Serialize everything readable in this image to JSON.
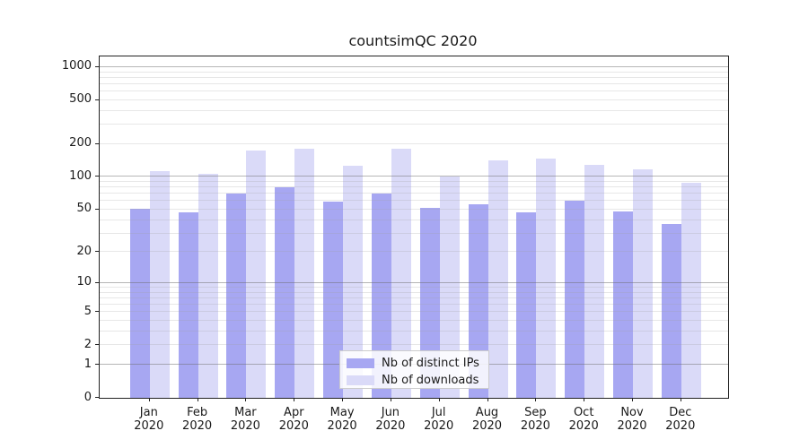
{
  "title": "countsimQC 2020",
  "chart_data": {
    "type": "bar",
    "title": "countsimQC 2020",
    "x_months": [
      "Jan",
      "Feb",
      "Mar",
      "Apr",
      "May",
      "Jun",
      "Jul",
      "Aug",
      "Sep",
      "Oct",
      "Nov",
      "Dec"
    ],
    "x_year": "2020",
    "categories": [
      "Jan 2020",
      "Feb 2020",
      "Mar 2020",
      "Apr 2020",
      "May 2020",
      "Jun 2020",
      "Jul 2020",
      "Aug 2020",
      "Sep 2020",
      "Oct 2020",
      "Nov 2020",
      "Dec 2020"
    ],
    "series": [
      {
        "name": "Nb of distinct IPs",
        "color": "#a7a7f2",
        "values": [
          51,
          47,
          71,
          81,
          59,
          71,
          52,
          56,
          47,
          61,
          48,
          37
        ]
      },
      {
        "name": "Nb of downloads",
        "color": "#dadaf8",
        "values": [
          113,
          107,
          174,
          181,
          127,
          181,
          100,
          142,
          147,
          128,
          117,
          88
        ]
      }
    ],
    "y_axis": {
      "scale": "log1p",
      "ticks": [
        0,
        1,
        2,
        5,
        10,
        20,
        50,
        100,
        200,
        500,
        1000
      ],
      "major_gridlines": [
        1,
        10,
        100,
        1000
      ],
      "minor_gridlines": [
        2,
        3,
        4,
        5,
        6,
        7,
        8,
        9,
        20,
        30,
        40,
        50,
        60,
        70,
        80,
        90,
        200,
        300,
        400,
        500,
        600,
        700,
        800,
        900
      ],
      "max": 1250
    },
    "legend_position": "lower center",
    "grid": true
  },
  "colors": {
    "bar_distinct_ips": "#a7a7f2",
    "bar_downloads": "#dadaf8",
    "axis": "#222222",
    "text": "#191919"
  }
}
